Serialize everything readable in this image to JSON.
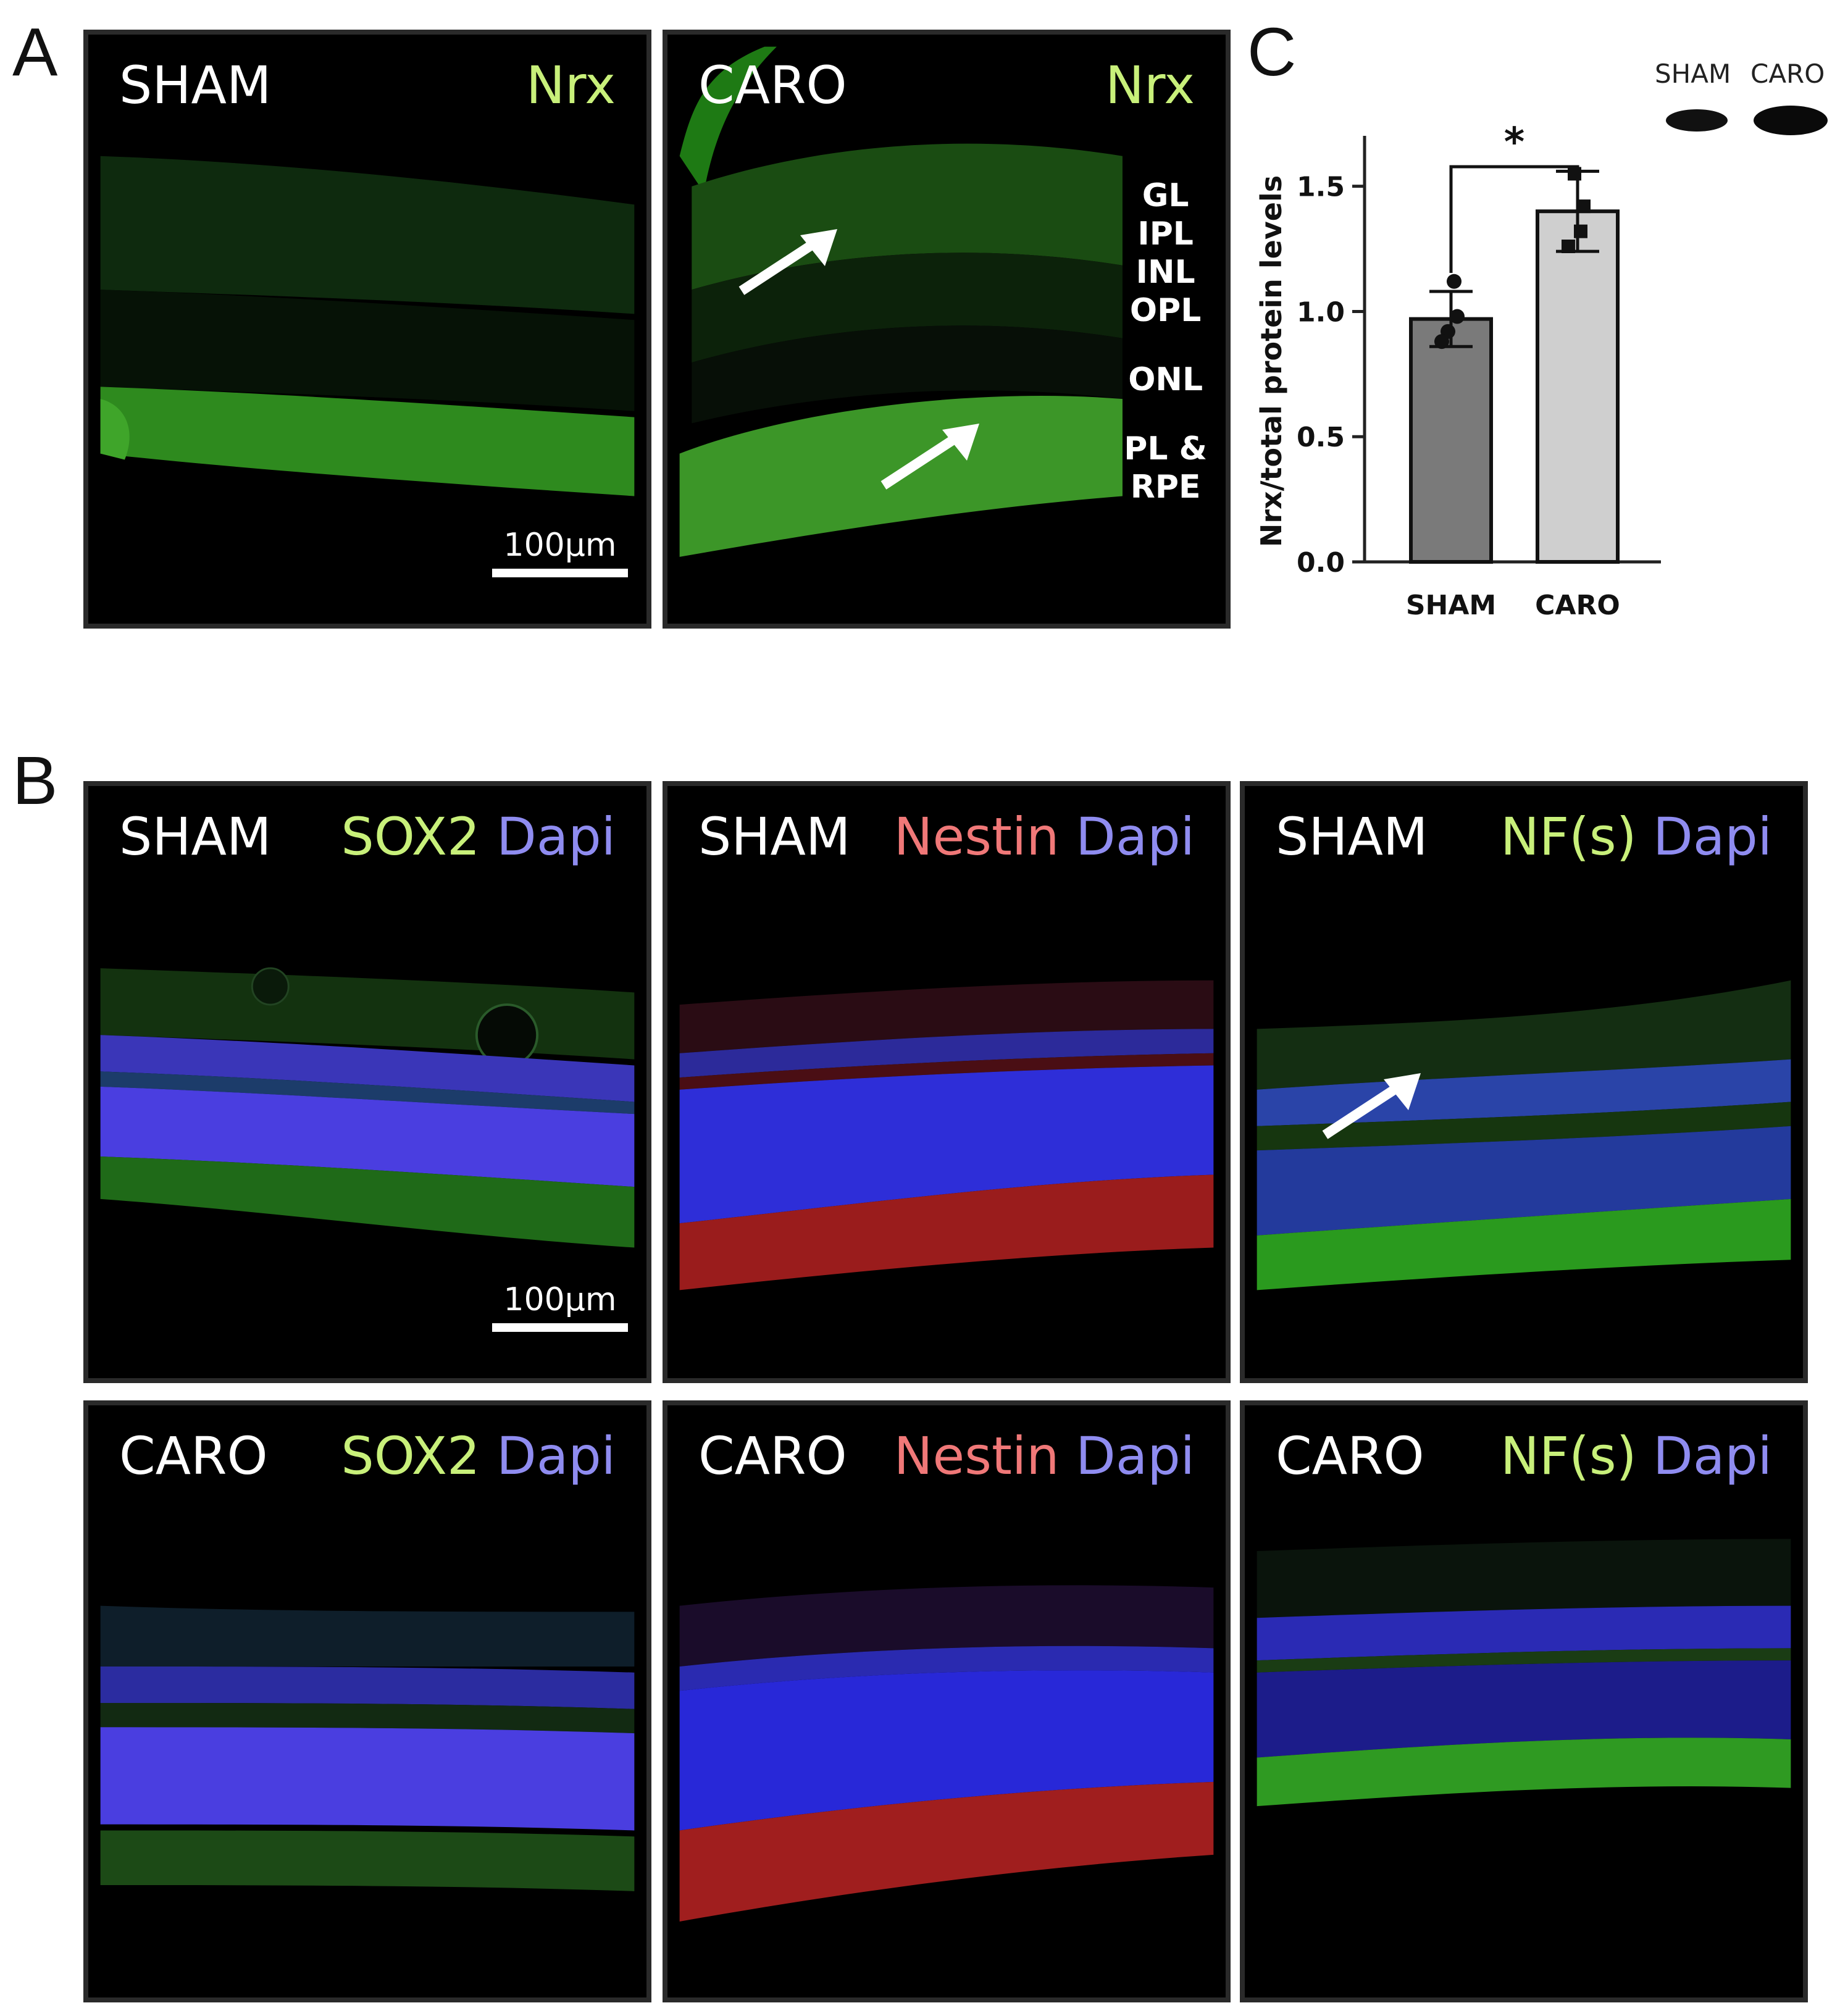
{
  "panels": {
    "A": "A",
    "B": "B",
    "C": "C"
  },
  "panel_a": {
    "left": {
      "condition": "SHAM",
      "stain": "Nrx",
      "scale": "100µm"
    },
    "right": {
      "condition": "CARO",
      "stain": "Nrx",
      "layers": [
        "GL",
        "IPL",
        "INL",
        "OPL",
        "ONL",
        "PL &",
        "RPE"
      ]
    }
  },
  "panel_b": {
    "sham_sox2": {
      "condition": "SHAM",
      "marker": "SOX2",
      "dapi": "Dapi",
      "scale": "100µm"
    },
    "sham_nestin": {
      "condition": "SHAM",
      "marker": "Nestin",
      "dapi": "Dapi"
    },
    "sham_nf": {
      "condition": "SHAM",
      "marker": "NF(s)",
      "dapi": "Dapi"
    },
    "caro_sox2": {
      "condition": "CARO",
      "marker": "SOX2",
      "dapi": "Dapi"
    },
    "caro_nestin": {
      "condition": "CARO",
      "marker": "Nestin",
      "dapi": "Dapi"
    },
    "caro_nf": {
      "condition": "CARO",
      "marker": "NF(s)",
      "dapi": "Dapi"
    }
  },
  "blot": {
    "labels": [
      "SHAM",
      "CARO"
    ]
  },
  "colors": {
    "green_label": "#c8f07a",
    "red_label": "#f07878",
    "blue_label": "#8f8cf0",
    "sham_bar": "#7a7a7a",
    "caro_bar": "#cfcfcf"
  },
  "chart_data": {
    "type": "bar",
    "categories": [
      "SHAM",
      "CARO"
    ],
    "values": [
      0.97,
      1.4
    ],
    "error": [
      0.11,
      0.16
    ],
    "points": [
      [
        0.92,
        0.98,
        1.12,
        0.88
      ],
      [
        1.55,
        1.42,
        1.32,
        1.26
      ]
    ],
    "ylabel": "Nrx/total protein levels",
    "ylim": [
      0,
      1.8
    ],
    "yticks": [
      0.0,
      0.5,
      1.0,
      1.5
    ],
    "significance": "*"
  }
}
